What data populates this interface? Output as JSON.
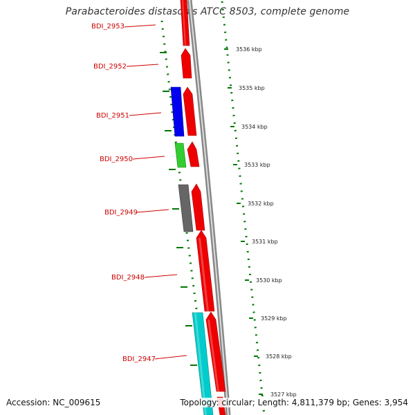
{
  "title": "Parabacteroides distasonis ATCC 8503, complete genome",
  "accession": "Accession: NC_009615",
  "summary": "Topology: circular; Length: 4,811,379 bp; Genes: 3,954",
  "colors": {
    "forward_gene": "#ee0000",
    "reverse_gene": "#0000ee",
    "rna_gene": "#33cc33",
    "pseudo_gene": "#666666",
    "cyan_gene": "#00cccc",
    "backbone": "#888888",
    "tick": "#007700",
    "label": "#cc0000"
  },
  "kbp_ticks": [
    {
      "label": "3536 kbp"
    },
    {
      "label": "3535 kbp"
    },
    {
      "label": "3534 kbp"
    },
    {
      "label": "3533 kbp"
    },
    {
      "label": "3532 kbp"
    },
    {
      "label": "3531 kbp"
    },
    {
      "label": "3530 kbp"
    },
    {
      "label": "3529 kbp"
    },
    {
      "label": "3528 kbp"
    },
    {
      "label": "3527 kbp"
    }
  ],
  "gene_labels": [
    {
      "label": "BDI_2953"
    },
    {
      "label": "BDI_2952"
    },
    {
      "label": "BDI_2951"
    },
    {
      "label": "BDI_2950"
    },
    {
      "label": "BDI_2949"
    },
    {
      "label": "BDI_2948"
    },
    {
      "label": "BDI_2947"
    }
  ]
}
